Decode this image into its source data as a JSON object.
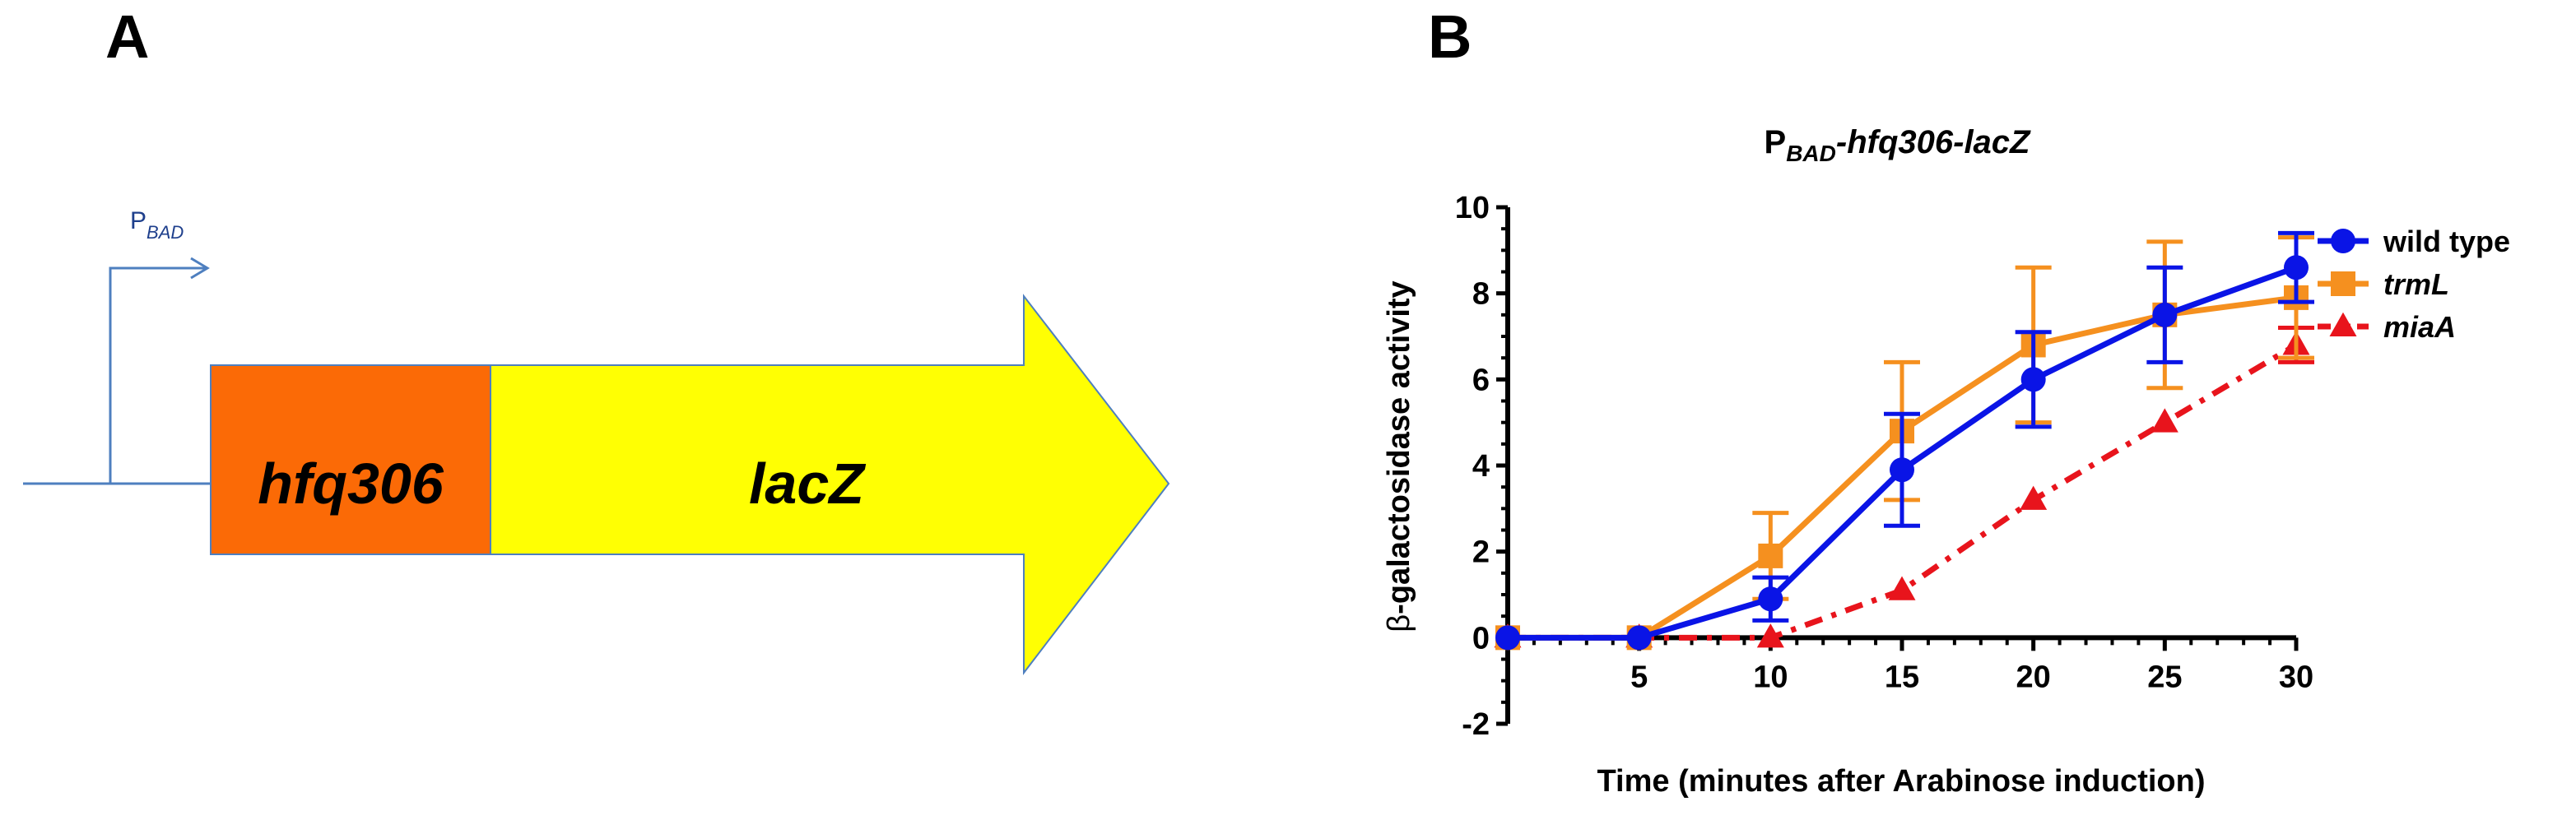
{
  "panel_a": {
    "label": "A",
    "promoter": {
      "main": "P",
      "sub": "BAD"
    },
    "gene1": "hfq306",
    "gene2": "lacZ"
  },
  "panel_b": {
    "label": "B"
  },
  "colors": {
    "wild_type": "#0a14e6",
    "trmL": "#f5901f",
    "miaA": "#e8141c",
    "hfq306_box": "#fb6a06",
    "lacz_arrow": "#ffff03",
    "promoter_line": "#4e7fbf"
  },
  "chart_data": {
    "type": "line",
    "title_parts": {
      "main": "P",
      "sub": "BAD",
      "rest": "-hfq306-lacZ"
    },
    "xlabel": "Time (minutes after Arabinose induction)",
    "ylabel_symbol": "β",
    "ylabel_rest": "-galactosidase activity",
    "xlim": [
      0,
      30
    ],
    "ylim": [
      -2,
      10
    ],
    "xticks": [
      5,
      10,
      15,
      20,
      25,
      30
    ],
    "yticks": [
      -2,
      0,
      2,
      4,
      6,
      8,
      10
    ],
    "x": [
      0,
      5,
      10,
      15,
      20,
      25,
      30
    ],
    "series": [
      {
        "name": "wild type",
        "marker": "circle",
        "line": "solid",
        "values": [
          0,
          0,
          0.9,
          3.9,
          6.0,
          7.5,
          8.6
        ],
        "errors": [
          0,
          0,
          0.5,
          1.3,
          1.1,
          1.1,
          0.8
        ]
      },
      {
        "name": "trmL",
        "marker": "square",
        "line": "solid",
        "values": [
          0,
          0,
          1.9,
          4.8,
          6.8,
          7.5,
          7.9
        ],
        "errors": [
          0,
          0,
          1.0,
          1.6,
          1.8,
          1.7,
          1.4
        ]
      },
      {
        "name": "miaA",
        "marker": "triangle",
        "line": "dashed",
        "values": [
          0,
          0,
          0,
          1.1,
          3.2,
          5.0,
          6.8
        ],
        "errors": [
          0,
          0,
          0,
          0,
          0,
          0,
          0.4
        ]
      }
    ],
    "legend": [
      "wild type",
      "trmL",
      "miaA"
    ],
    "legend_position": "right"
  }
}
